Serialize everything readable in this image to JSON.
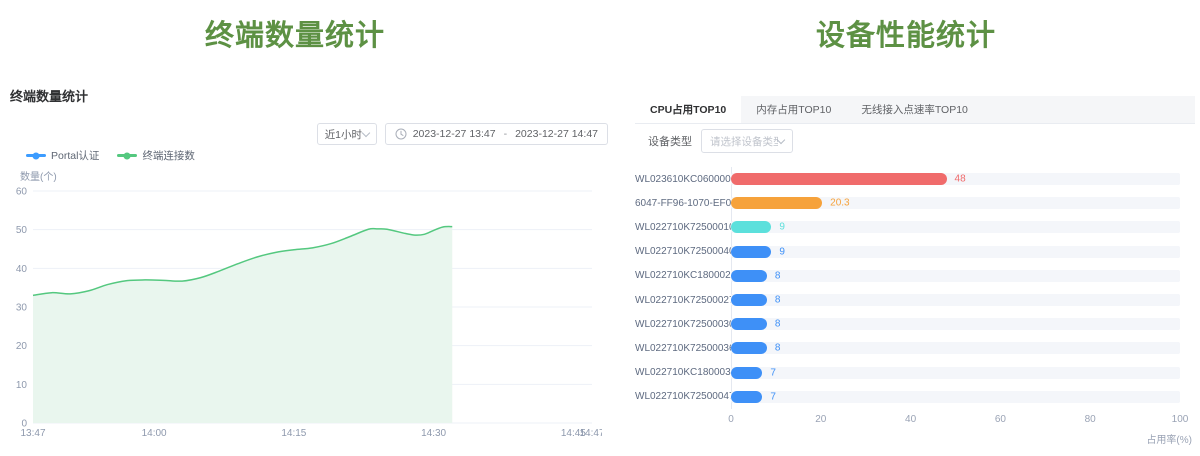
{
  "left_panel": {
    "title": "终端数量统计",
    "title_color": "#5d9144",
    "section_title": "终端数量统计",
    "controls": {
      "range_select": "近1小时",
      "date_start": "2023-12-27 13:47",
      "date_separator": "-",
      "date_end": "2023-12-27 14:47"
    },
    "legend": [
      {
        "label": "Portal认证",
        "color": "#3c9cff"
      },
      {
        "label": "终端连接数",
        "color": "#54c87f"
      }
    ]
  },
  "right_panel": {
    "title": "设备性能统计",
    "title_color": "#5d9144",
    "tabs": [
      {
        "label": "CPU占用TOP10",
        "active": true
      },
      {
        "label": "内存占用TOP10",
        "active": false
      },
      {
        "label": "无线接入点速率TOP10",
        "active": false
      }
    ],
    "filter": {
      "label": "设备类型",
      "placeholder": "请选择设备类型"
    }
  },
  "chart_data": [
    {
      "type": "area",
      "title": "终端数量统计",
      "ylabel": "数量(个)",
      "ylim": [
        0,
        60
      ],
      "y_ticks": [
        0,
        10,
        20,
        30,
        40,
        50,
        60
      ],
      "x_unit": "minutes from 13:47",
      "x_range": [
        0,
        60
      ],
      "x_ticks": [
        {
          "pos": 0,
          "label": "13:47"
        },
        {
          "pos": 13,
          "label": "14:00"
        },
        {
          "pos": 28,
          "label": "14:15"
        },
        {
          "pos": 43,
          "label": "14:30"
        },
        {
          "pos": 58,
          "label": "14:45"
        },
        {
          "pos": 60,
          "label": "14:47"
        }
      ],
      "grid": true,
      "legend_position": "top-left",
      "series": [
        {
          "name": "Portal认证",
          "color": "#3c9cff",
          "points": []
        },
        {
          "name": "终端连接数",
          "color": "#54c87f",
          "fill": "#e9f6ee",
          "points": [
            [
              0,
              33
            ],
            [
              2,
              33.7
            ],
            [
              4,
              33.4
            ],
            [
              6,
              34.2
            ],
            [
              8,
              35.8
            ],
            [
              10,
              36.8
            ],
            [
              12,
              37
            ],
            [
              14,
              36.9
            ],
            [
              16,
              36.7
            ],
            [
              18,
              37.6
            ],
            [
              20,
              39.3
            ],
            [
              22,
              41.2
            ],
            [
              24,
              42.9
            ],
            [
              26,
              44.1
            ],
            [
              28,
              44.8
            ],
            [
              30,
              45.3
            ],
            [
              32,
              46.4
            ],
            [
              34,
              48.2
            ],
            [
              36,
              50.1
            ],
            [
              37,
              50.2
            ],
            [
              38,
              50.1
            ],
            [
              40,
              49
            ],
            [
              41,
              48.6
            ],
            [
              42,
              48.8
            ],
            [
              43,
              49.8
            ],
            [
              44,
              50.7
            ],
            [
              45,
              50.8
            ]
          ]
        }
      ]
    },
    {
      "type": "bar",
      "orientation": "horizontal",
      "title": "CPU占用TOP10",
      "xlabel": "占用率(%)",
      "xlim": [
        0,
        100
      ],
      "x_ticks": [
        0,
        20,
        40,
        60,
        80,
        100
      ],
      "track_color": "#f4f6fa",
      "categories": [
        "WL023610KC06000043",
        "6047-FF96-1070-EF0A",
        "WL022710K725000102",
        "WL022710K725000409",
        "WL022710KC18000280",
        "WL022710K725000272",
        "WL022710K725000307",
        "WL022710K725000369",
        "WL022710KC18000372",
        "WL022710K725000470"
      ],
      "values": [
        48,
        20.3,
        9,
        9,
        8,
        8,
        8,
        8,
        7,
        7
      ],
      "colors": [
        "#f06b6b",
        "#f6a23b",
        "#5ce0dc",
        "#3e90f7",
        "#3e90f7",
        "#3e90f7",
        "#3e90f7",
        "#3e90f7",
        "#3e90f7",
        "#3e90f7"
      ]
    }
  ]
}
